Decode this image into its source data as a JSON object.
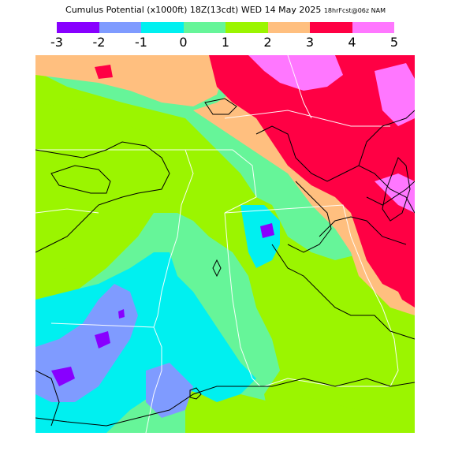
{
  "header": {
    "title_main": "Cumulus Potential (x1000ft) 18Z(13cdt) WED 14 May 2025",
    "title_small": "18hrFcst@06z NAM"
  },
  "legend": {
    "ticks": [
      "-3",
      "-2",
      "-1",
      "0",
      "1",
      "2",
      "3",
      "4",
      "5"
    ],
    "colors": [
      "#8800ff",
      "#7f9bff",
      "#00f0f0",
      "#66f599",
      "#9bf500",
      "#ffbf7f",
      "#ff0044",
      "#ff77ff"
    ]
  },
  "map": {
    "palette": {
      "purple": "#8800ff",
      "blue": "#7f9bff",
      "cyan": "#00f0f0",
      "mint": "#66f599",
      "green": "#9bf500",
      "orange": "#ffbf7f",
      "red": "#ff0044",
      "pink": "#ff77ff",
      "boundary": "#ffffff",
      "contour": "#000000"
    }
  }
}
